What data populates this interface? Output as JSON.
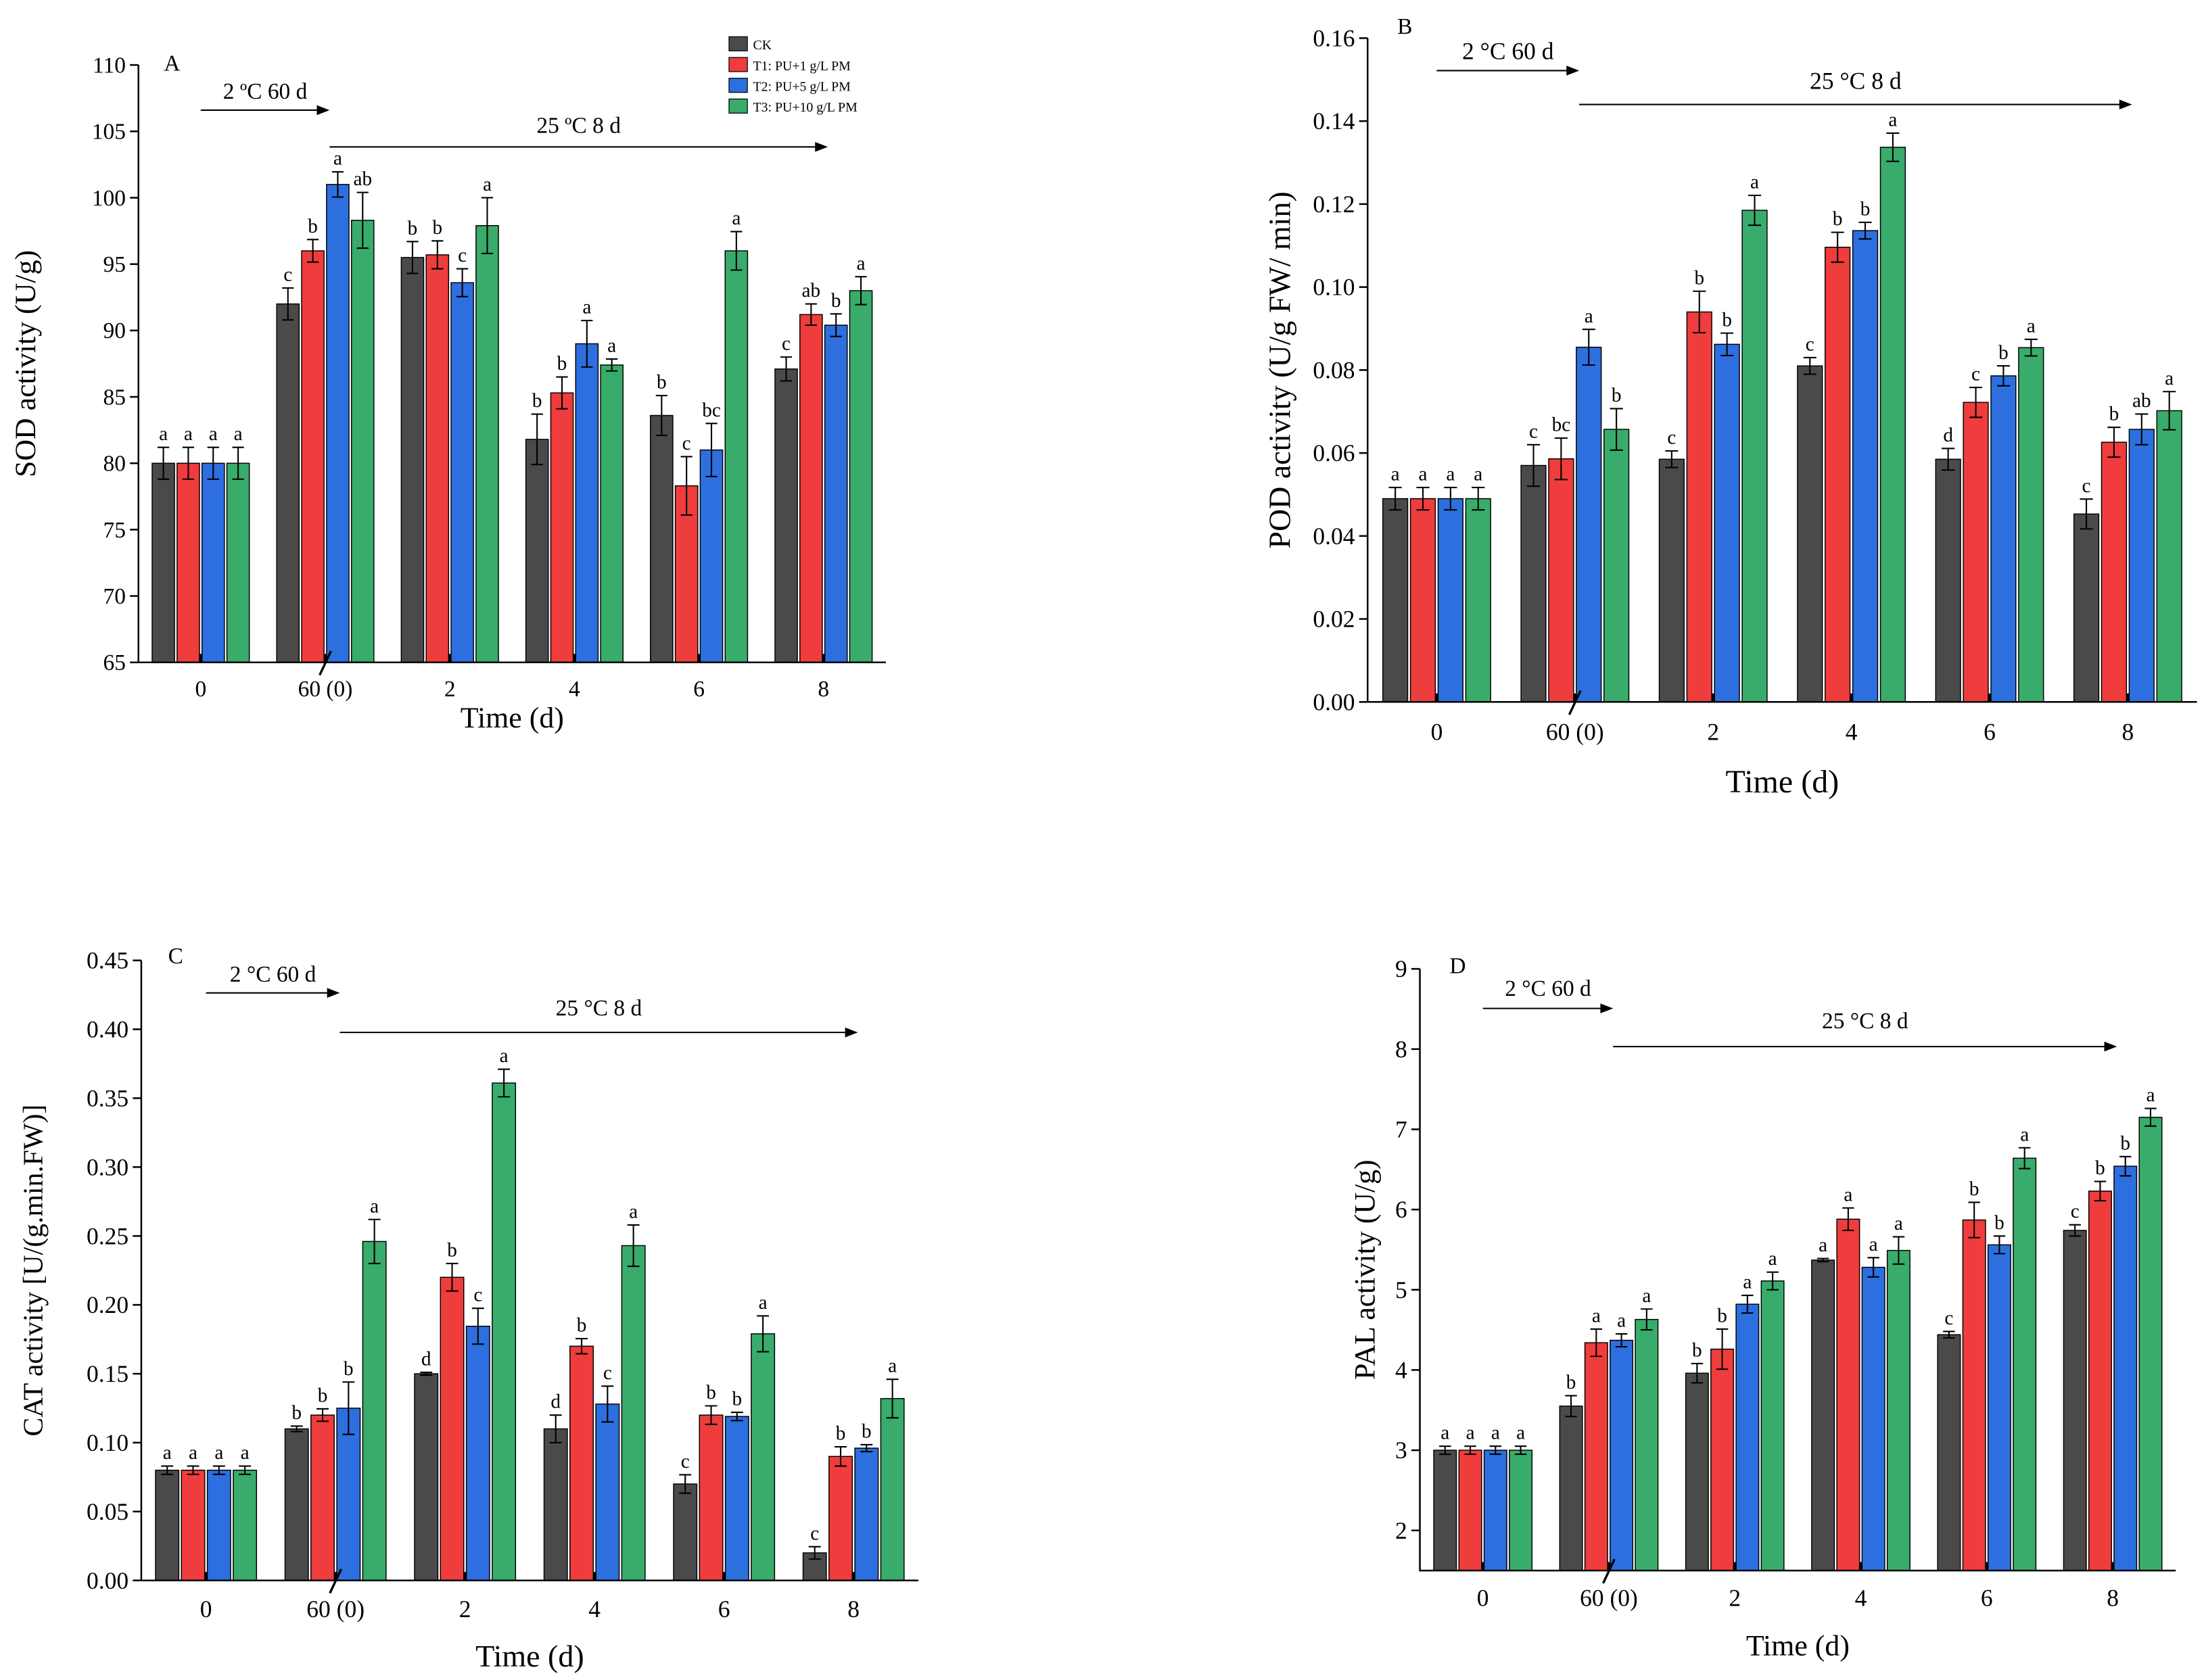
{
  "legend": [
    {
      "label": "CK",
      "color": "#4a4a4a"
    },
    {
      "label": "T1: PU+1 g/L PM",
      "color": "#ef3d3d"
    },
    {
      "label": "T2: PU+5 g/L PM",
      "color": "#2e6fdf"
    },
    {
      "label": "T3: PU+10 g/L PM",
      "color": "#39ac6b"
    }
  ],
  "chart_data": [
    {
      "panel": "A",
      "type": "bar",
      "xlabel": "Time (d)",
      "ylabel": "SOD activity (U/g)",
      "ylim": [
        65,
        110
      ],
      "ytick_labels": [
        "65",
        "70",
        "75",
        "80",
        "85",
        "90",
        "95",
        "100",
        "105",
        "110"
      ],
      "categories": [
        "0",
        "60 (0)",
        "2",
        "4",
        "6",
        "8"
      ],
      "annotations": [
        {
          "text": "2 ºC 60 d",
          "from": 0,
          "to": 1
        },
        {
          "text": "25 ºC 8 d",
          "from": 1,
          "to": 5
        }
      ],
      "series": [
        {
          "legend": 0,
          "values": [
            80,
            92,
            95.5,
            81.8,
            83.6,
            87.1
          ],
          "errors": [
            1.2,
            1.2,
            1.2,
            1.9,
            1.5,
            0.9
          ],
          "letters": [
            "a",
            "c",
            "b",
            "b",
            "b",
            "c"
          ]
        },
        {
          "legend": 1,
          "values": [
            80,
            96,
            95.7,
            85.3,
            78.3,
            91.2
          ],
          "errors": [
            1.2,
            0.85,
            1.05,
            1.2,
            2.2,
            0.8
          ],
          "letters": [
            "a",
            "b",
            "b",
            "b",
            "c",
            "ab"
          ]
        },
        {
          "legend": 2,
          "values": [
            80,
            101,
            93.6,
            89,
            81,
            90.4
          ],
          "errors": [
            1.2,
            0.95,
            1.05,
            1.75,
            2.0,
            0.85
          ],
          "letters": [
            "a",
            "a",
            "c",
            "a",
            "bc",
            "b"
          ]
        },
        {
          "legend": 3,
          "values": [
            80,
            98.3,
            97.9,
            87.4,
            96,
            93
          ],
          "errors": [
            1.2,
            2.1,
            2.1,
            0.45,
            1.45,
            1.05
          ],
          "letters": [
            "a",
            "ab",
            "a",
            "a",
            "a",
            "a"
          ]
        }
      ]
    },
    {
      "panel": "B",
      "type": "bar",
      "xlabel": "Time (d)",
      "ylabel": "POD activity (U/g FW/ min)",
      "ylim": [
        0,
        0.16
      ],
      "ytick_labels": [
        "0.00",
        "0.02",
        "0.04",
        "0.06",
        "0.08",
        "0.10",
        "0.12",
        "0.14",
        "0.16"
      ],
      "categories": [
        "0",
        "60 (0)",
        "2",
        "4",
        "6",
        "8"
      ],
      "annotations": [
        {
          "text": "2 °C 60 d",
          "from": 0,
          "to": 1
        },
        {
          "text": "25 °C 8 d",
          "from": 1,
          "to": 5
        }
      ],
      "series": [
        {
          "legend": 0,
          "values": [
            0.049,
            0.057,
            0.0585,
            0.081,
            0.0585,
            0.0453
          ],
          "errors": [
            0.0027,
            0.005,
            0.002,
            0.002,
            0.0026,
            0.0036
          ],
          "letters": [
            "a",
            "c",
            "c",
            "c",
            "d",
            "c"
          ]
        },
        {
          "legend": 1,
          "values": [
            0.049,
            0.0586,
            0.094,
            0.1096,
            0.0722,
            0.0626
          ],
          "errors": [
            0.0027,
            0.005,
            0.005,
            0.0036,
            0.0036,
            0.0036
          ],
          "letters": [
            "a",
            "bc",
            "b",
            "b",
            "c",
            "b"
          ]
        },
        {
          "legend": 2,
          "values": [
            0.049,
            0.0855,
            0.0862,
            0.1136,
            0.0786,
            0.0657
          ],
          "errors": [
            0.0027,
            0.0043,
            0.0027,
            0.002,
            0.0024,
            0.0037
          ],
          "letters": [
            "a",
            "a",
            "b",
            "b",
            "b",
            "ab"
          ]
        },
        {
          "legend": 3,
          "values": [
            0.049,
            0.0657,
            0.1185,
            0.1337,
            0.0854,
            0.0702
          ],
          "errors": [
            0.0027,
            0.005,
            0.0036,
            0.0034,
            0.002,
            0.0046
          ],
          "letters": [
            "a",
            "b",
            "a",
            "a",
            "a",
            "a"
          ]
        }
      ]
    },
    {
      "panel": "C",
      "type": "bar",
      "xlabel": "Time (d)",
      "ylabel": "CAT activity [U/(g.min.FW)]",
      "ylim": [
        0,
        0.45
      ],
      "ytick_labels": [
        "0.00",
        "0.05",
        "0.10",
        "0.15",
        "0.20",
        "0.25",
        "0.30",
        "0.35",
        "0.40",
        "0.45"
      ],
      "categories": [
        "0",
        "60 (0)",
        "2",
        "4",
        "6",
        "8"
      ],
      "annotations": [
        {
          "text": "2 °C 60 d",
          "from": 0,
          "to": 1
        },
        {
          "text": "25 °C 8 d",
          "from": 1,
          "to": 5
        }
      ],
      "series": [
        {
          "legend": 0,
          "values": [
            0.08,
            0.11,
            0.15,
            0.11,
            0.07,
            0.02
          ],
          "errors": [
            0.003,
            0.002,
            0.001,
            0.01,
            0.0067,
            0.0045
          ],
          "letters": [
            "a",
            "b",
            "d",
            "d",
            "c",
            "c"
          ]
        },
        {
          "legend": 1,
          "values": [
            0.08,
            0.12,
            0.22,
            0.17,
            0.12,
            0.09
          ],
          "errors": [
            0.003,
            0.0045,
            0.01,
            0.0055,
            0.0067,
            0.007
          ],
          "letters": [
            "a",
            "b",
            "b",
            "b",
            "b",
            "b"
          ]
        },
        {
          "legend": 2,
          "values": [
            0.08,
            0.125,
            0.1845,
            0.128,
            0.119,
            0.096
          ],
          "errors": [
            0.003,
            0.019,
            0.013,
            0.013,
            0.003,
            0.0025
          ],
          "letters": [
            "a",
            "b",
            "c",
            "c",
            "b",
            "b"
          ]
        },
        {
          "legend": 3,
          "values": [
            0.08,
            0.246,
            0.361,
            0.243,
            0.179,
            0.132
          ],
          "errors": [
            0.003,
            0.016,
            0.01,
            0.015,
            0.013,
            0.014
          ],
          "letters": [
            "a",
            "a",
            "a",
            "a",
            "a",
            "a"
          ]
        }
      ]
    },
    {
      "panel": "D",
      "type": "bar",
      "xlabel": "Time (d)",
      "ylabel": "PAL activity (U/g)",
      "ylim": [
        1.5,
        9
      ],
      "ytick_labels": [
        "2",
        "3",
        "4",
        "5",
        "6",
        "7",
        "8",
        "9"
      ],
      "categories": [
        "0",
        "60 (0)",
        "2",
        "4",
        "6",
        "8"
      ],
      "annotations": [
        {
          "text": "2 °C 60 d",
          "from": 0,
          "to": 1
        },
        {
          "text": "25 °C 8 d",
          "from": 1,
          "to": 5
        }
      ],
      "series": [
        {
          "legend": 0,
          "values": [
            3.0,
            3.55,
            3.96,
            5.37,
            4.44,
            5.74
          ],
          "errors": [
            0.05,
            0.13,
            0.12,
            0.02,
            0.04,
            0.07
          ],
          "letters": [
            "a",
            "b",
            "b",
            "a",
            "c",
            "c"
          ]
        },
        {
          "legend": 1,
          "values": [
            3.0,
            4.34,
            4.26,
            5.88,
            5.87,
            6.23
          ],
          "errors": [
            0.05,
            0.17,
            0.25,
            0.14,
            0.22,
            0.12
          ],
          "letters": [
            "a",
            "a",
            "b",
            "a",
            "b",
            "b"
          ]
        },
        {
          "legend": 2,
          "values": [
            3.0,
            4.37,
            4.82,
            5.28,
            5.56,
            6.54
          ],
          "errors": [
            0.05,
            0.08,
            0.11,
            0.12,
            0.11,
            0.12
          ],
          "letters": [
            "a",
            "a",
            "a",
            "a",
            "b",
            "b"
          ]
        },
        {
          "legend": 3,
          "values": [
            3.0,
            4.63,
            5.11,
            5.49,
            6.64,
            7.15
          ],
          "errors": [
            0.05,
            0.13,
            0.11,
            0.17,
            0.13,
            0.11
          ],
          "letters": [
            "a",
            "a",
            "a",
            "a",
            "a",
            "a"
          ]
        }
      ]
    }
  ]
}
